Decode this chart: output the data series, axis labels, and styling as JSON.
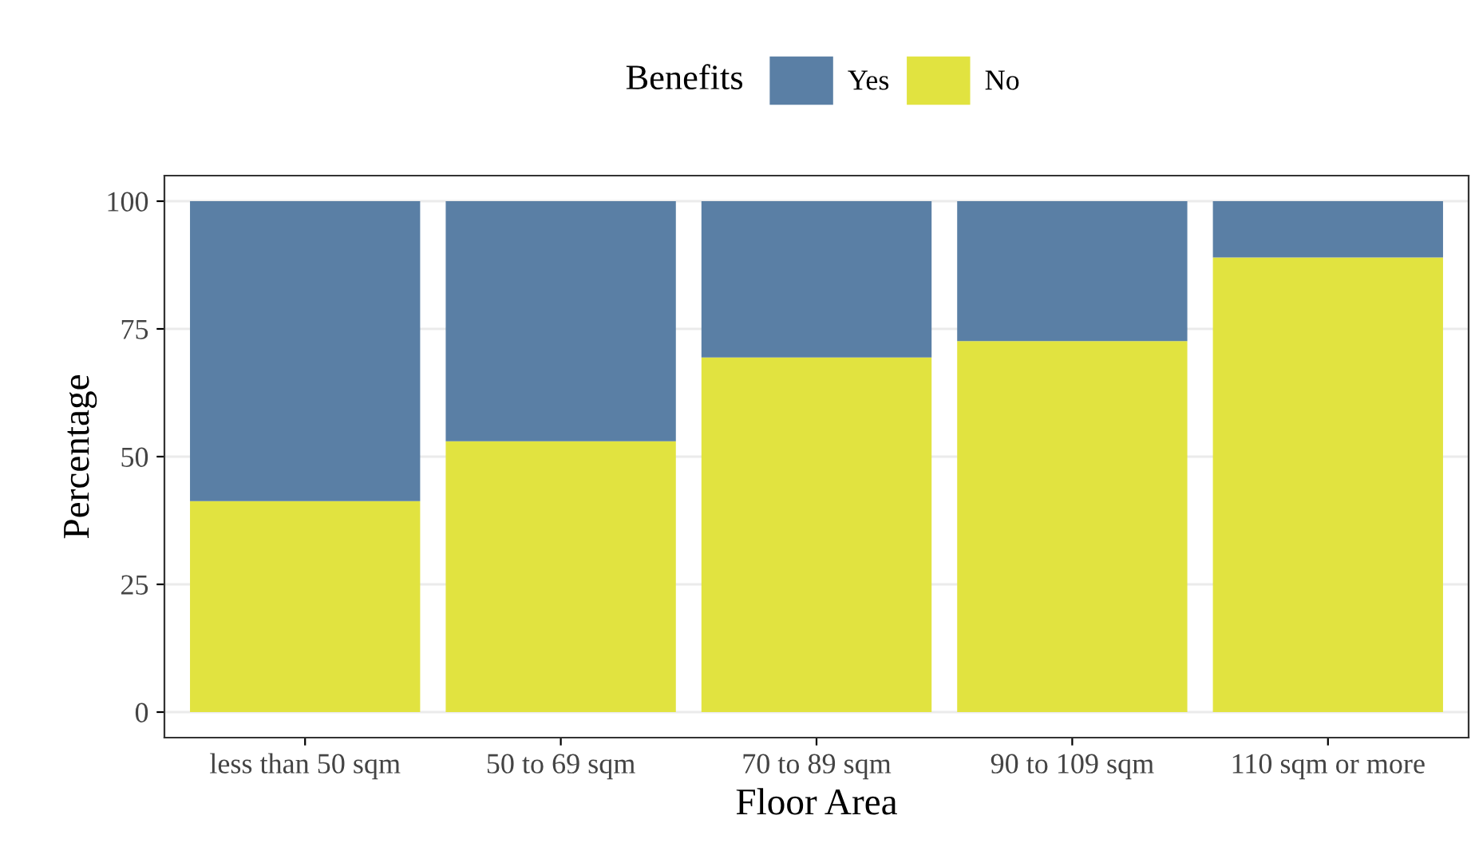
{
  "chart_data": {
    "type": "bar",
    "stacked": true,
    "xlabel": "Floor Area",
    "ylabel": "Percentage",
    "legend_title": "Benefits",
    "categories": [
      "less than 50 sqm",
      "50 to 69 sqm",
      "70 to 89 sqm",
      "90 to 109 sqm",
      "110 sqm or more"
    ],
    "series": [
      {
        "name": "No",
        "color": "#e1e340",
        "values": [
          41.3,
          53.0,
          69.4,
          72.6,
          89.0
        ]
      },
      {
        "name": "Yes",
        "color": "#5a7fa5",
        "values": [
          58.7,
          47.0,
          30.6,
          27.4,
          11.0
        ]
      }
    ],
    "ylim": [
      -5,
      105
    ],
    "yticks": [
      0,
      25,
      50,
      75,
      100
    ],
    "grid": "y",
    "legend": "top"
  }
}
